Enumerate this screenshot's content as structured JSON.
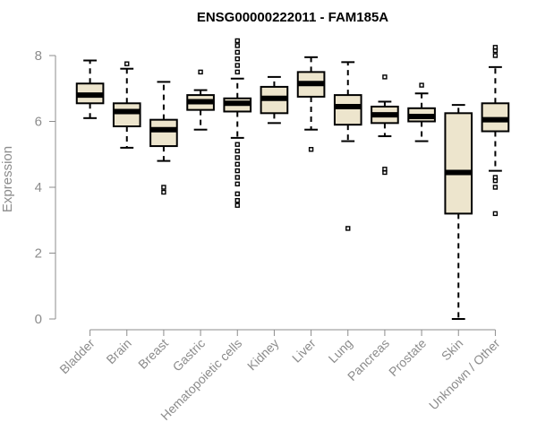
{
  "chart_data": {
    "type": "boxplot",
    "title": "ENSG00000222011 - FAM185A",
    "ylabel": "Expression",
    "xlabel": "",
    "ylim": [
      0,
      8.5
    ],
    "yticks": [
      0,
      2,
      4,
      6,
      8
    ],
    "box_fill": "#ede5cd",
    "categories": [
      "Bladder",
      "Brain",
      "Breast",
      "Gastric",
      "Hematopoietic cells",
      "Kidney",
      "Liver",
      "Lung",
      "Pancreas",
      "Prostate",
      "Skin",
      "Unknown / Other"
    ],
    "boxes": [
      {
        "whisker_low": 6.1,
        "q1": 6.55,
        "median": 6.8,
        "q3": 7.15,
        "whisker_high": 7.85,
        "outliers": []
      },
      {
        "whisker_low": 5.2,
        "q1": 5.85,
        "median": 6.3,
        "q3": 6.55,
        "whisker_high": 7.6,
        "outliers": [
          7.75
        ]
      },
      {
        "whisker_low": 4.8,
        "q1": 5.25,
        "median": 5.75,
        "q3": 6.05,
        "whisker_high": 7.2,
        "outliers": [
          3.85,
          4.0
        ]
      },
      {
        "whisker_low": 5.75,
        "q1": 6.35,
        "median": 6.6,
        "q3": 6.8,
        "whisker_high": 6.95,
        "outliers": [
          7.5
        ]
      },
      {
        "whisker_low": 5.5,
        "q1": 6.3,
        "median": 6.55,
        "q3": 6.7,
        "whisker_high": 7.3,
        "outliers": [
          3.45,
          3.6,
          3.8,
          4.1,
          4.3,
          4.5,
          4.7,
          4.9,
          5.1,
          5.3,
          7.5,
          7.7,
          7.9,
          8.1,
          8.3,
          8.45
        ]
      },
      {
        "whisker_low": 5.95,
        "q1": 6.25,
        "median": 6.7,
        "q3": 7.05,
        "whisker_high": 7.35,
        "outliers": []
      },
      {
        "whisker_low": 5.75,
        "q1": 6.75,
        "median": 7.15,
        "q3": 7.5,
        "whisker_high": 7.95,
        "outliers": [
          5.15
        ]
      },
      {
        "whisker_low": 5.4,
        "q1": 5.9,
        "median": 6.45,
        "q3": 6.8,
        "whisker_high": 7.8,
        "outliers": [
          2.75
        ]
      },
      {
        "whisker_low": 5.55,
        "q1": 5.95,
        "median": 6.2,
        "q3": 6.45,
        "whisker_high": 6.6,
        "outliers": [
          4.45,
          4.55,
          7.35
        ]
      },
      {
        "whisker_low": 5.4,
        "q1": 6.0,
        "median": 6.15,
        "q3": 6.4,
        "whisker_high": 6.85,
        "outliers": [
          7.1
        ]
      },
      {
        "whisker_low": 0.0,
        "q1": 3.2,
        "median": 4.45,
        "q3": 6.25,
        "whisker_high": 6.5,
        "outliers": []
      },
      {
        "whisker_low": 4.5,
        "q1": 5.7,
        "median": 6.05,
        "q3": 6.55,
        "whisker_high": 7.65,
        "outliers": [
          3.2,
          4.0,
          4.2,
          4.3,
          8.0,
          8.15,
          8.25
        ]
      }
    ]
  }
}
